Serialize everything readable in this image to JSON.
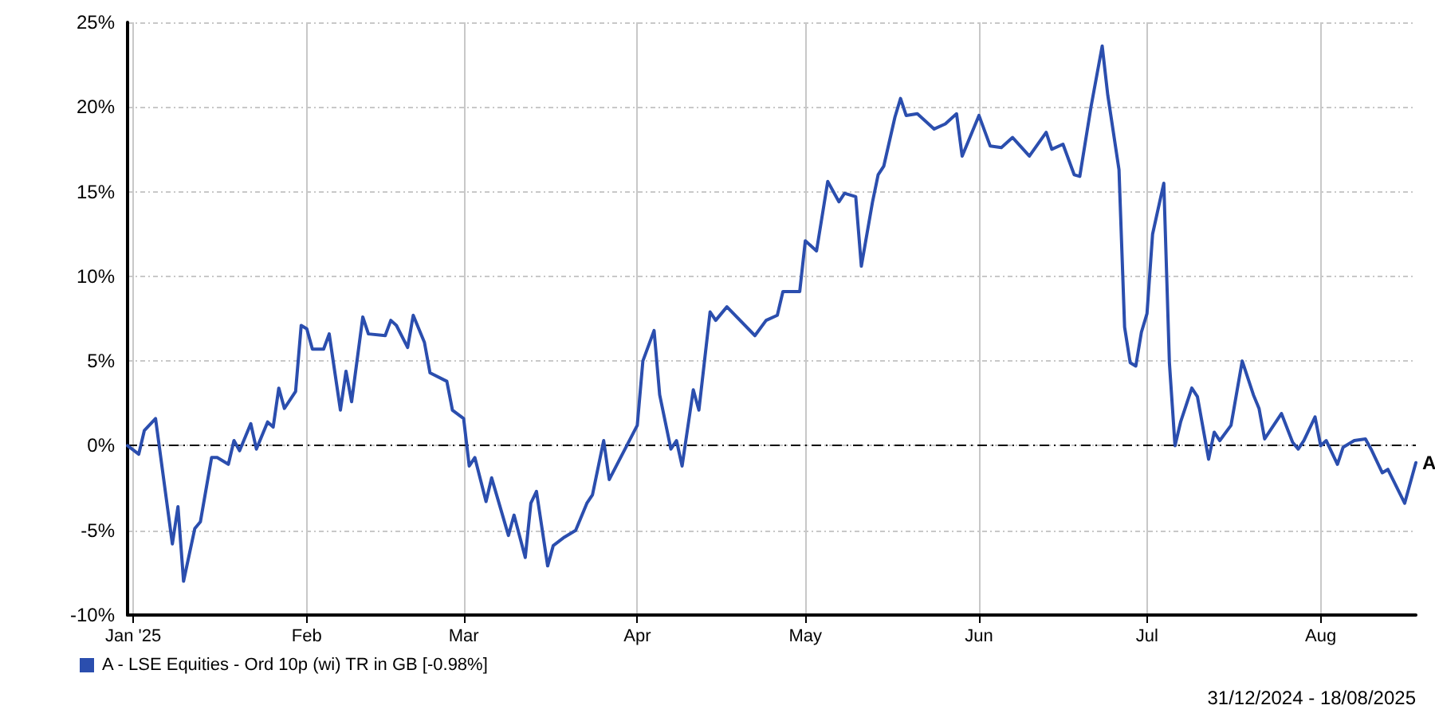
{
  "chart_data": {
    "type": "line",
    "x": [
      "2024-12-31",
      "2025-01-02",
      "2025-01-03",
      "2025-01-05",
      "2025-01-08",
      "2025-01-09",
      "2025-01-10",
      "2025-01-12",
      "2025-01-13",
      "2025-01-15",
      "2025-01-16",
      "2025-01-18",
      "2025-01-19",
      "2025-01-20",
      "2025-01-22",
      "2025-01-23",
      "2025-01-25",
      "2025-01-26",
      "2025-01-27",
      "2025-01-28",
      "2025-01-30",
      "2025-01-31",
      "2025-02-01",
      "2025-02-02",
      "2025-02-04",
      "2025-02-05",
      "2025-02-07",
      "2025-02-08",
      "2025-02-09",
      "2025-02-11",
      "2025-02-12",
      "2025-02-15",
      "2025-02-16",
      "2025-02-17",
      "2025-02-19",
      "2025-02-20",
      "2025-02-22",
      "2025-02-23",
      "2025-02-26",
      "2025-02-27",
      "2025-03-01",
      "2025-03-02",
      "2025-03-03",
      "2025-03-05",
      "2025-03-06",
      "2025-03-09",
      "2025-03-10",
      "2025-03-12",
      "2025-03-13",
      "2025-03-14",
      "2025-03-16",
      "2025-03-17",
      "2025-03-19",
      "2025-03-21",
      "2025-03-23",
      "2025-03-24",
      "2025-03-26",
      "2025-03-27",
      "2025-04-01",
      "2025-04-02",
      "2025-04-04",
      "2025-04-05",
      "2025-04-07",
      "2025-04-08",
      "2025-04-09",
      "2025-04-11",
      "2025-04-12",
      "2025-04-14",
      "2025-04-15",
      "2025-04-17",
      "2025-04-22",
      "2025-04-24",
      "2025-04-26",
      "2025-04-27",
      "2025-04-30",
      "2025-05-01",
      "2025-05-03",
      "2025-05-05",
      "2025-05-07",
      "2025-05-08",
      "2025-05-10",
      "2025-05-11",
      "2025-05-13",
      "2025-05-14",
      "2025-05-15",
      "2025-05-17",
      "2025-05-18",
      "2025-05-19",
      "2025-05-21",
      "2025-05-24",
      "2025-05-26",
      "2025-05-28",
      "2025-05-29",
      "2025-06-01",
      "2025-06-03",
      "2025-06-05",
      "2025-06-07",
      "2025-06-10",
      "2025-06-13",
      "2025-06-14",
      "2025-06-16",
      "2025-06-18",
      "2025-06-19",
      "2025-06-21",
      "2025-06-23",
      "2025-06-24",
      "2025-06-26",
      "2025-06-27",
      "2025-06-28",
      "2025-06-29",
      "2025-06-30",
      "2025-07-01",
      "2025-07-02",
      "2025-07-04",
      "2025-07-05",
      "2025-07-06",
      "2025-07-07",
      "2025-07-09",
      "2025-07-10",
      "2025-07-12",
      "2025-07-13",
      "2025-07-14",
      "2025-07-16",
      "2025-07-18",
      "2025-07-20",
      "2025-07-21",
      "2025-07-22",
      "2025-07-25",
      "2025-07-27",
      "2025-07-28",
      "2025-07-29",
      "2025-07-31",
      "2025-08-01",
      "2025-08-02",
      "2025-08-04",
      "2025-08-05",
      "2025-08-07",
      "2025-08-09",
      "2025-08-10",
      "2025-08-12",
      "2025-08-13",
      "2025-08-16",
      "2025-08-18"
    ],
    "series": [
      {
        "name": "A - LSE Equities - Ord 10p (wi) TR in GB [-0.98%]",
        "color": "#2b4eae",
        "values": [
          0,
          -0.5,
          0.9,
          1.6,
          -5.8,
          -3.6,
          -8.0,
          -4.9,
          -4.5,
          -0.7,
          -0.7,
          -1.1,
          0.3,
          -0.3,
          1.3,
          -0.2,
          1.4,
          1.1,
          3.4,
          2.2,
          3.2,
          7.1,
          6.9,
          5.7,
          5.7,
          6.6,
          2.1,
          4.4,
          2.6,
          7.6,
          6.6,
          6.5,
          7.4,
          7.1,
          5.8,
          7.7,
          6.1,
          4.3,
          3.8,
          2.1,
          1.6,
          -1.2,
          -0.7,
          -3.3,
          -1.9,
          -5.3,
          -4.1,
          -6.6,
          -3.4,
          -2.7,
          -7.1,
          -5.9,
          -5.4,
          -5.0,
          -3.4,
          -2.9,
          0.3,
          -2.0,
          1.2,
          5.0,
          6.8,
          3.0,
          -0.2,
          0.3,
          -1.2,
          3.3,
          2.1,
          7.9,
          7.4,
          8.2,
          6.5,
          7.4,
          7.7,
          9.1,
          9.1,
          12.1,
          11.5,
          15.6,
          14.4,
          14.9,
          14.7,
          10.6,
          14.4,
          16.0,
          16.5,
          19.4,
          20.5,
          19.5,
          19.6,
          18.7,
          19.0,
          19.6,
          17.1,
          19.5,
          17.7,
          17.6,
          18.2,
          17.1,
          18.5,
          17.5,
          17.8,
          16.0,
          15.9,
          20.0,
          23.6,
          20.7,
          16.3,
          7.0,
          4.9,
          4.7,
          6.7,
          7.8,
          12.5,
          15.5,
          4.9,
          0.0,
          1.4,
          3.4,
          2.9,
          -0.8,
          0.8,
          0.3,
          1.2,
          5.0,
          3.0,
          2.2,
          0.4,
          1.9,
          0.2,
          -0.2,
          0.3,
          1.7,
          0.0,
          0.3,
          -1.1,
          -0.1,
          0.3,
          0.4,
          -0.2,
          -1.6,
          -1.4,
          -3.4,
          -1.0
        ]
      }
    ],
    "xlim": [
      "2024-12-31",
      "2025-08-18"
    ],
    "xticks": [
      {
        "value": "2025-01-01",
        "label": "Jan '25"
      },
      {
        "value": "2025-02-01",
        "label": "Feb"
      },
      {
        "value": "2025-03-01",
        "label": "Mar"
      },
      {
        "value": "2025-04-01",
        "label": "Apr"
      },
      {
        "value": "2025-05-01",
        "label": "May"
      },
      {
        "value": "2025-06-01",
        "label": "Jun"
      },
      {
        "value": "2025-07-01",
        "label": "Jul"
      },
      {
        "value": "2025-08-01",
        "label": "Aug"
      }
    ],
    "ylim": [
      -10,
      25
    ],
    "yticks": [
      {
        "value": -10,
        "label": "-10%"
      },
      {
        "value": -5,
        "label": "-5%"
      },
      {
        "value": 0,
        "label": "0%"
      },
      {
        "value": 5,
        "label": "5%"
      },
      {
        "value": 10,
        "label": "10%"
      },
      {
        "value": 15,
        "label": "15%"
      },
      {
        "value": 20,
        "label": "20%"
      },
      {
        "value": 25,
        "label": "25%"
      }
    ],
    "grid": true,
    "legend": "bottom left",
    "marker": "none",
    "line_style": "solid",
    "ref_lines": [
      {
        "axis": "y",
        "value": 0,
        "color": "#000000",
        "line_style": "dashed"
      }
    ],
    "annotations": [
      {
        "text": "A",
        "x": "2025-08-18",
        "y": -1.0
      },
      "31/12/2024 - 18/08/2025"
    ]
  }
}
